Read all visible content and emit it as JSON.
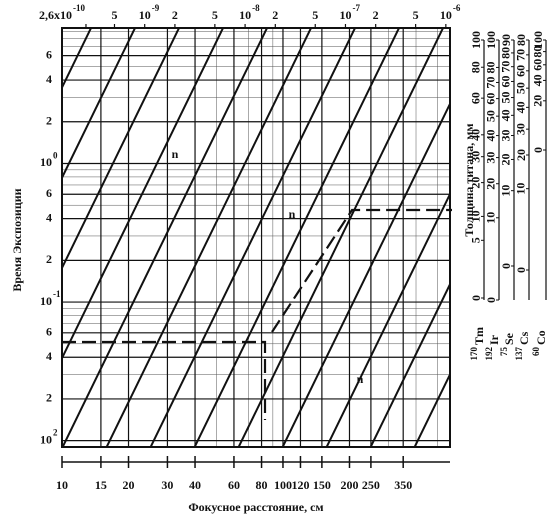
{
  "chart_data": {
    "type": "nomogram",
    "x_label": "Фокусное расстояние, см",
    "y_label": "Время  Экспозиции",
    "xscale": "log",
    "yscale": "log",
    "grid": true,
    "xlim": [
      10,
      570
    ],
    "xticks": [
      10,
      15,
      20,
      30,
      40,
      60,
      80,
      100,
      120,
      150,
      200,
      250,
      350
    ],
    "ylim": [
      0.009,
      9.5
    ],
    "yticks": [
      {
        "value": 0.01,
        "label": "10",
        "sup": "2"
      },
      {
        "value": 0.02,
        "label": "2"
      },
      {
        "value": 0.04,
        "label": "4"
      },
      {
        "value": 0.06,
        "label": "6"
      },
      {
        "value": 0.1,
        "label": "10",
        "sup": "-1"
      },
      {
        "value": 0.2,
        "label": "2"
      },
      {
        "value": 0.4,
        "label": "4"
      },
      {
        "value": 0.6,
        "label": "6"
      },
      {
        "value": 1,
        "label": "10",
        "sup": "0"
      },
      2,
      4,
      6
    ],
    "x2lim": [
      1.5e-10,
      1.1e-06
    ],
    "x2ticks": [
      {
        "value": 2.6e-10,
        "label": "2,6x10",
        "sup": "-10"
      },
      {
        "value": 5e-10,
        "label": "5"
      },
      {
        "value": 1e-09,
        "label": "10",
        "sup": "-9"
      },
      {
        "value": 2e-09,
        "label": "2"
      },
      {
        "value": 5e-09,
        "label": "5"
      },
      {
        "value": 1e-08,
        "label": "10",
        "sup": "-8"
      },
      {
        "value": 2e-08,
        "label": "2"
      },
      {
        "value": 5e-08,
        "label": "5"
      },
      {
        "value": 1e-07,
        "label": "10",
        "sup": "-7"
      },
      {
        "value": 2e-07,
        "label": "2"
      },
      {
        "value": 5e-07,
        "label": "5"
      },
      {
        "value": 1e-06,
        "label": "10",
        "sup": "-6"
      }
    ],
    "annotations": [
      "n",
      "n",
      "n"
    ],
    "thickness_label": "Толщина титана, мм",
    "thickness_scale": "sqrt",
    "scales": [
      {
        "mass": "170",
        "symbol": "Tm",
        "lim": [
          0,
          100
        ],
        "ticks": [
          0,
          5,
          10,
          20,
          30,
          40,
          60,
          80,
          100
        ]
      },
      {
        "mass": "192",
        "symbol": "Ir",
        "lim": [
          0,
          100
        ],
        "ticks": [
          0,
          10,
          20,
          30,
          40,
          50,
          60,
          70,
          80,
          100
        ]
      },
      {
        "mass": "75",
        "symbol": "Se",
        "lim": [
          0,
          90
        ],
        "ticks": [
          0,
          10,
          20,
          30,
          40,
          50,
          60,
          70,
          80,
          90
        ]
      },
      {
        "mass": "137",
        "symbol": "Cs",
        "lim": [
          0,
          80
        ],
        "ticks": [
          0,
          10,
          20,
          30,
          40,
          50,
          60,
          70,
          80
        ]
      },
      {
        "mass": "60",
        "symbol": "Co",
        "lim": [
          0,
          100
        ],
        "ticks": [
          0,
          20,
          40,
          60,
          80,
          100
        ]
      }
    ]
  }
}
